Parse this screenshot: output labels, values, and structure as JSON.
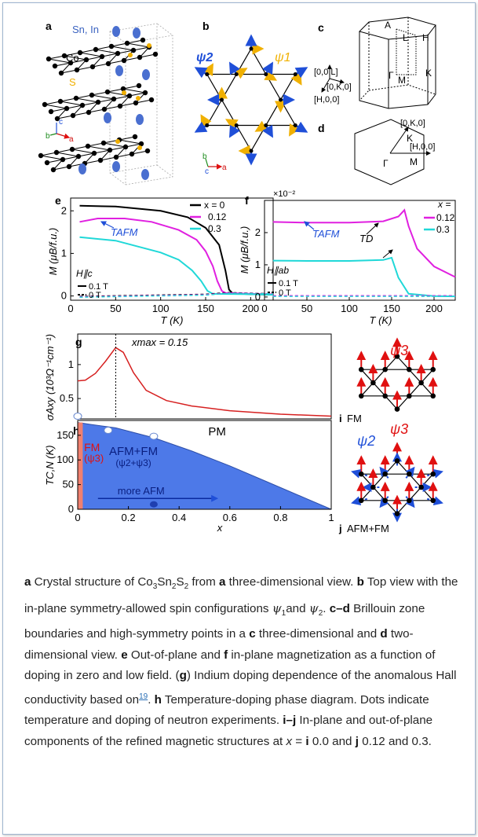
{
  "panels": {
    "a": {
      "letter": "a",
      "atom_sn": "Sn, In",
      "atom_co": "Co",
      "atom_s": "S",
      "axis_a": "a",
      "axis_b": "b",
      "axis_c": "c"
    },
    "b": {
      "letter": "b",
      "psi2": "ψ2",
      "psi1": "ψ1",
      "axis_b": "b",
      "axis_c": "c",
      "axis_a": "a"
    },
    "c": {
      "letter": "c",
      "labels": [
        "A",
        "L",
        "H",
        "Γ",
        "M",
        "K"
      ],
      "dir_L": "[0,0,L]",
      "dir_K": "[0,K,0]",
      "dir_H": "[H,0,0]"
    },
    "d": {
      "letter": "d",
      "dir_K": "[0,K,0]",
      "dir_H": "[H,0,0]",
      "K": "K",
      "M": "M",
      "Gamma": "Γ"
    },
    "e": {
      "letter": "e",
      "legend_title": "x = 0",
      "legend_items": [
        "0.12",
        "0.3"
      ],
      "annot": "TAFM",
      "field_dir": "H∥c",
      "field1": "0.1 T",
      "field2": "0 T"
    },
    "f": {
      "letter": "f",
      "scale": "×10⁻²",
      "legend_title": "x =",
      "legend_items": [
        "0.12",
        "0.3"
      ],
      "annot1": "TAFM",
      "annot2": "TD",
      "field_dir": "H∥ab",
      "field1": "0.1 T",
      "field2": "0 T"
    },
    "g": {
      "letter": "g",
      "annot": "xmax = 0.15"
    },
    "h": {
      "letter": "h",
      "region_fm": "FM",
      "region_fm_psi": "(ψ3)",
      "region_afm": "AFM+FM",
      "region_afm_psi": "(ψ2+ψ3)",
      "region_pm": "PM",
      "arrow_label": "more AFM"
    },
    "i": {
      "letter": "i",
      "label": "FM",
      "psi3": "ψ3"
    },
    "j": {
      "letter": "j",
      "label": "AFM+FM",
      "psi2": "ψ2",
      "psi3": "ψ3"
    }
  },
  "chart_data": [
    {
      "type": "line",
      "panel": "e",
      "xlabel": "T (K)",
      "ylabel": "M (μB/f.u.)",
      "xlim": [
        0,
        225
      ],
      "ylim": [
        -0.1,
        2.3
      ],
      "xticks": [
        "0",
        "50",
        "100",
        "150",
        "200"
      ],
      "yticks": [
        "0",
        "1",
        "2"
      ],
      "series": [
        {
          "name": "x = 0",
          "color": "#000000",
          "x": [
            10,
            50,
            100,
            130,
            150,
            165,
            172,
            176,
            180,
            200,
            225
          ],
          "y": [
            2.12,
            2.1,
            2.0,
            1.85,
            1.6,
            1.2,
            0.6,
            0.15,
            0.06,
            0.04,
            0.03
          ]
        },
        {
          "name": "0.12",
          "color": "#e020e0",
          "x": [
            10,
            30,
            60,
            90,
            120,
            140,
            150,
            158,
            163,
            168,
            172,
            200,
            225
          ],
          "y": [
            1.74,
            1.82,
            1.82,
            1.74,
            1.55,
            1.32,
            1.05,
            0.7,
            0.35,
            0.12,
            0.07,
            0.05,
            0.04
          ]
        },
        {
          "name": "0.3",
          "color": "#20d8d8",
          "x": [
            10,
            50,
            100,
            120,
            135,
            145,
            152,
            158,
            200,
            225
          ],
          "y": [
            1.38,
            1.3,
            1.02,
            0.85,
            0.6,
            0.35,
            0.12,
            0.05,
            0.04,
            0.03
          ]
        }
      ]
    },
    {
      "type": "line",
      "panel": "f",
      "xlabel": "T (K)",
      "ylabel": "M (μB/f.u.)",
      "xlim": [
        0,
        225
      ],
      "ylim": [
        -0.1,
        3.0
      ],
      "xticks": [
        "0",
        "50",
        "100",
        "150",
        "200"
      ],
      "yticks": [
        "0",
        "1",
        "2"
      ],
      "series": [
        {
          "name": "0.12",
          "color": "#e020e0",
          "x": [
            10,
            50,
            100,
            140,
            158,
            165,
            170,
            180,
            200,
            225
          ],
          "y": [
            2.33,
            2.31,
            2.31,
            2.35,
            2.5,
            2.7,
            2.2,
            1.5,
            0.95,
            0.62
          ]
        },
        {
          "name": "0.3",
          "color": "#20d8d8",
          "x": [
            10,
            50,
            100,
            140,
            150,
            158,
            170,
            200,
            225
          ],
          "y": [
            1.13,
            1.12,
            1.12,
            1.15,
            1.22,
            0.6,
            0.1,
            0.03,
            0.02
          ]
        }
      ]
    },
    {
      "type": "line",
      "panel": "g",
      "xlabel": "",
      "ylabel": "σAxy (10³Ω⁻¹cm⁻¹)",
      "xlim": [
        0,
        1
      ],
      "ylim": [
        0.2,
        1.45
      ],
      "yticks": [
        "0.5",
        "1"
      ],
      "series": [
        {
          "name": "",
          "color": "#d62020",
          "x": [
            0,
            0.03,
            0.07,
            0.11,
            0.15,
            0.18,
            0.22,
            0.27,
            0.35,
            0.45,
            0.6,
            0.8,
            1.0
          ],
          "y": [
            0.76,
            0.77,
            0.87,
            1.05,
            1.25,
            1.18,
            0.88,
            0.62,
            0.47,
            0.39,
            0.32,
            0.27,
            0.24
          ]
        }
      ]
    },
    {
      "type": "area",
      "panel": "h",
      "xlabel": "x",
      "ylabel": "TC,N (K)",
      "xlim": [
        0,
        1
      ],
      "ylim": [
        0,
        180
      ],
      "xticks": [
        "0",
        "0.2",
        "0.4",
        "0.6",
        "0.8",
        "1"
      ],
      "yticks": [
        "0",
        "50",
        "100",
        "150"
      ],
      "series": [
        {
          "name": "boundary",
          "color": "#4d79e8",
          "x": [
            0,
            0.05,
            0.15,
            0.3,
            0.45,
            0.6,
            0.75,
            0.9,
            1.0
          ],
          "y": [
            176,
            172,
            165,
            145,
            118,
            88,
            55,
            22,
            0
          ]
        }
      ],
      "fm_region_x": [
        0,
        0.02
      ],
      "neutron_points": [
        {
          "x": 0,
          "y": 176
        },
        {
          "x": 0.12,
          "y": 160
        },
        {
          "x": 0.3,
          "y": 148
        }
      ]
    }
  ],
  "caption": {
    "p1_b1": "a",
    "p1_t1": " Crystal structure of Co",
    "p1_s1": "3",
    "p1_t2": "Sn",
    "p1_s2": "2",
    "p1_t3": "S",
    "p1_s3": "2",
    "p1_t4": " from ",
    "p1_b2": "a",
    "p1_t5": " three-dimensional view. ",
    "p1_b3": "b",
    "p1_t6": " Top view with the in-plane symmetry-allowed spin configurations ",
    "psi1": "ψ",
    "psi1_sub": "1",
    "p1_t7": "and ",
    "psi2": "ψ",
    "psi2_sub": "2",
    "p1_t8": ". ",
    "p1_b4": "c–d",
    "p1_t9": " Brillouin zone boundaries and high-symmetry points in a ",
    "p1_b5": "c",
    "p1_t10": " three-dimensional and ",
    "p1_b6": "d",
    "p1_t11": " two-dimensional view. ",
    "p1_b7": "e",
    "p1_t12": " Out-of-plane and ",
    "p1_b8": "f",
    "p1_t13": " in-plane magnetization as a function of doping in zero and low field. (",
    "p1_b9": "g",
    "p1_t14": ") Indium doping dependence of the anomalous Hall conductivity based on",
    "cite": "19",
    "p1_t15": ". ",
    "p1_b10": "h",
    "p1_t16": " Temperature-doping phase diagram. Dots indicate temperature and doping of neutron experiments. ",
    "p1_b11": "i–j",
    "p1_t17": " In-plane and out-of-plane components of the refined magnetic structures at ",
    "p1_x": "x",
    "p1_t18": " = ",
    "p1_b12": "i",
    "p1_t19": " 0.0 and ",
    "p1_b13": "j",
    "p1_t20": " 0.12 and 0.3."
  }
}
